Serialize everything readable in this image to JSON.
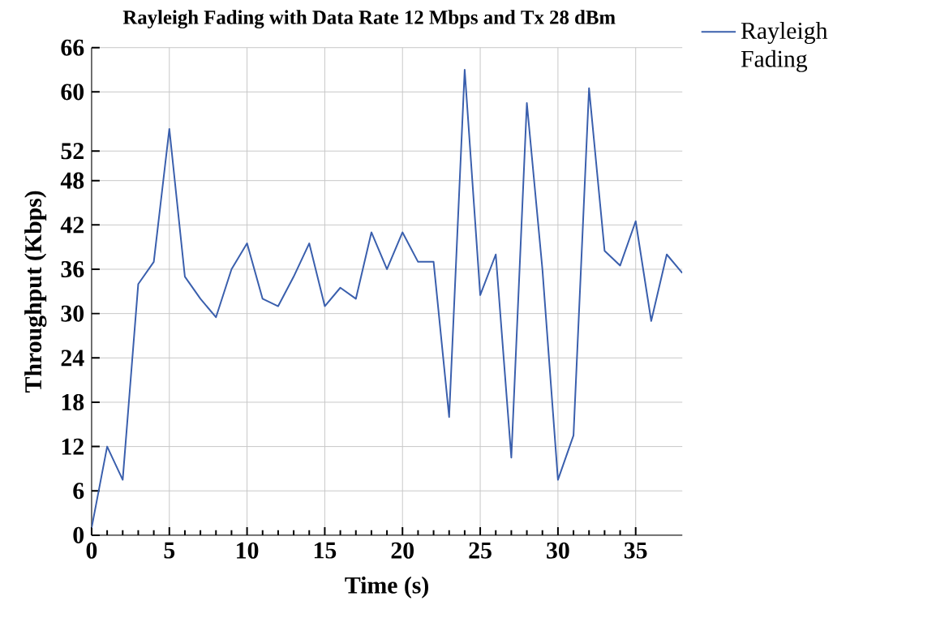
{
  "chart_data": {
    "type": "line",
    "title": "Rayleigh Fading with Data Rate 12 Mbps and Tx 28 dBm",
    "xlabel": "Time (s)",
    "ylabel": "Throughput (Kbps)",
    "x": [
      0,
      1,
      2,
      3,
      4,
      5,
      6,
      7,
      8,
      9,
      10,
      11,
      12,
      13,
      14,
      15,
      16,
      17,
      18,
      19,
      20,
      21,
      22,
      23,
      24,
      25,
      26,
      27,
      28,
      29,
      30,
      31,
      32,
      33,
      34,
      35,
      36,
      37,
      38
    ],
    "series": [
      {
        "name": "Rayleigh Fading",
        "color": "#3a5fad",
        "values": [
          1,
          12,
          7.5,
          34,
          37,
          55,
          35,
          32,
          29.5,
          36,
          39.5,
          32,
          31,
          35,
          39.5,
          31,
          33.5,
          32,
          41,
          36,
          41,
          37,
          37,
          16,
          63,
          32.5,
          38,
          10.5,
          58.5,
          36,
          7.5,
          13.5,
          60.5,
          38.5,
          36.5,
          42.5,
          29,
          38,
          35.5
        ]
      }
    ],
    "xlim": [
      0,
      38
    ],
    "ylim": [
      0,
      66
    ],
    "xticks": [
      0,
      5,
      10,
      15,
      20,
      25,
      30,
      35
    ],
    "yticks": [
      0,
      6,
      12,
      18,
      24,
      30,
      36,
      42,
      48,
      52,
      60,
      66
    ],
    "grid": true,
    "legend": "top right",
    "marker": "none",
    "line_style": "solid"
  }
}
